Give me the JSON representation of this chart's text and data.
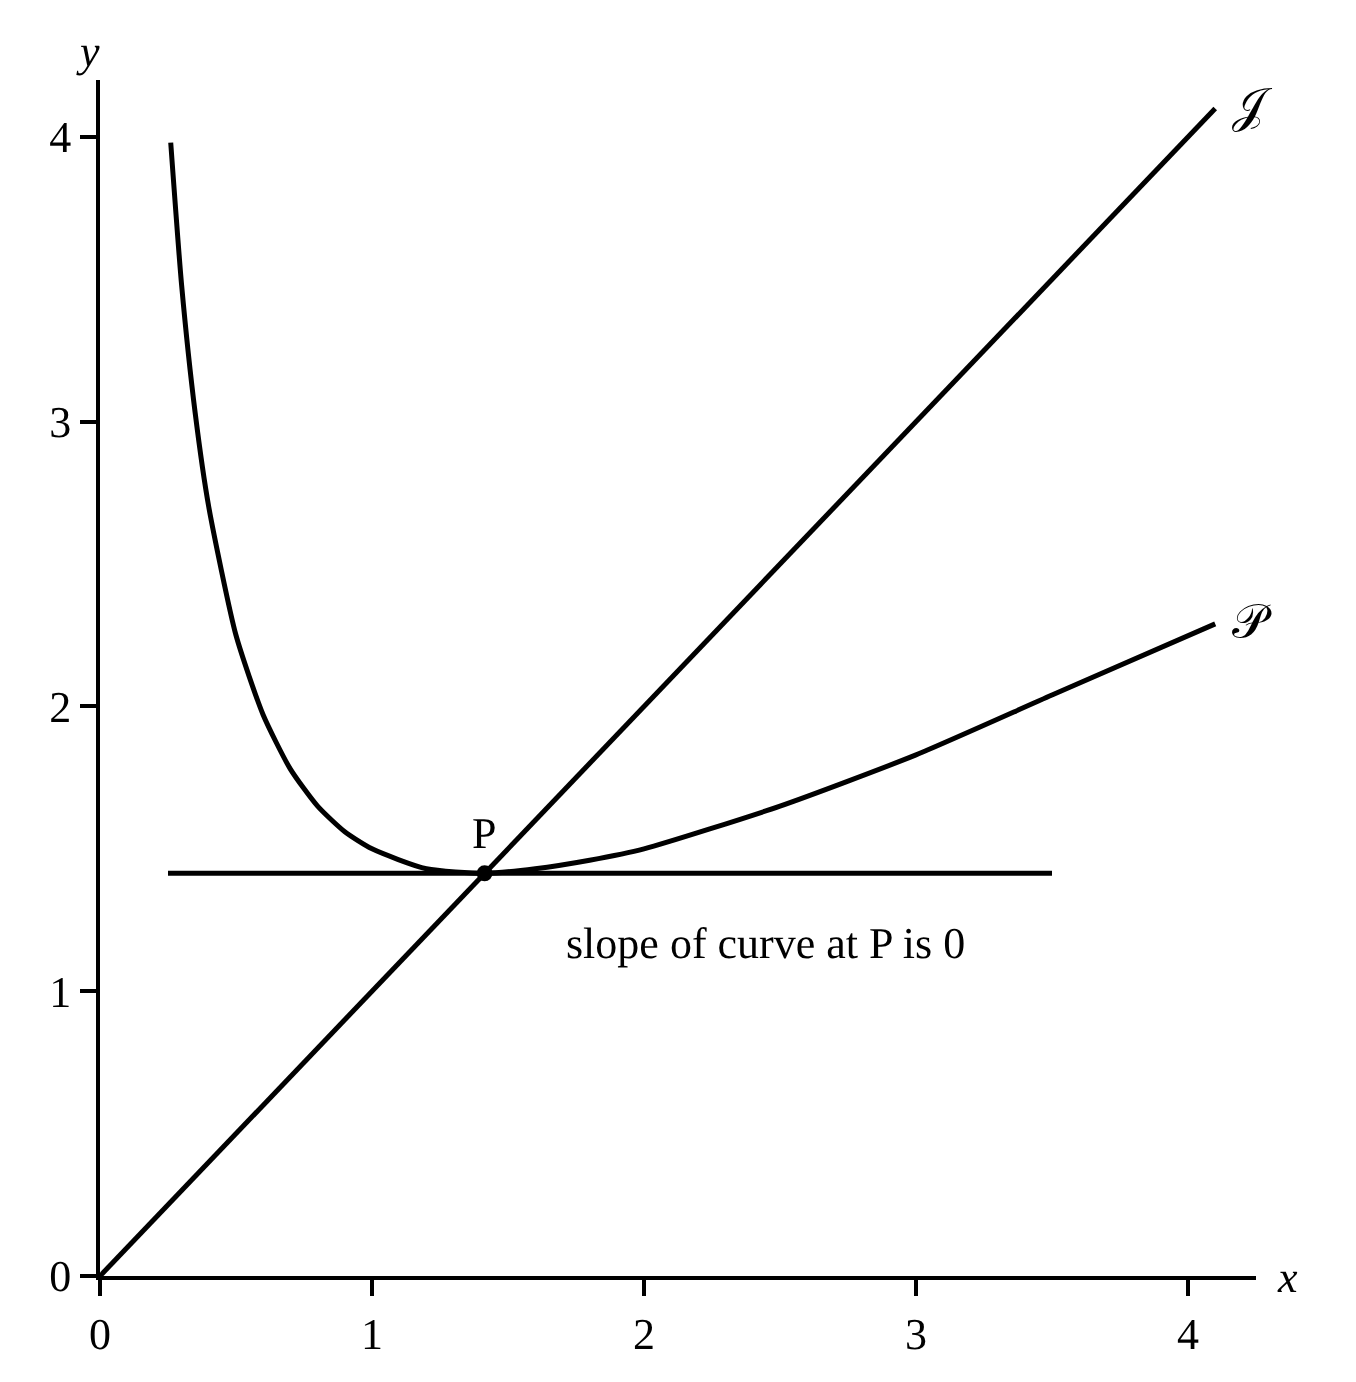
{
  "chart_data": {
    "type": "line",
    "xlabel": "x",
    "ylabel": "y",
    "xlim": [
      0,
      4.25
    ],
    "ylim": [
      0,
      4.2
    ],
    "xticks": [
      0,
      1,
      2,
      3,
      4
    ],
    "yticks": [
      0,
      1,
      2,
      3,
      4
    ],
    "grid": false,
    "legend": false,
    "color": "#000000",
    "series": [
      {
        "name": "𝒥",
        "x": [
          0,
          4.1
        ],
        "values": [
          0,
          4.1
        ]
      },
      {
        "name": "𝒫",
        "x": [
          0.26,
          0.3,
          0.35,
          0.4,
          0.5,
          0.6,
          0.7,
          0.8,
          0.9,
          1.0,
          1.2,
          1.414,
          1.6,
          1.8,
          2.0,
          2.5,
          3.0,
          3.5,
          4.1
        ],
        "values": [
          3.98,
          3.48,
          3.03,
          2.7,
          2.25,
          1.97,
          1.78,
          1.65,
          1.56,
          1.5,
          1.43,
          1.414,
          1.43,
          1.46,
          1.5,
          1.65,
          1.83,
          2.04,
          2.29
        ]
      },
      {
        "x": [
          0.25,
          3.5
        ],
        "values": [
          1.414,
          1.414
        ]
      },
      {
        "type": "scatter",
        "x": [
          1.414
        ],
        "values": [
          1.414
        ]
      }
    ],
    "annotations": [
      {
        "text": "P",
        "x": 1.414,
        "y": 1.414
      },
      {
        "text": "slope of curve at P is 0",
        "x": 2.45,
        "y": 1.414
      }
    ]
  }
}
